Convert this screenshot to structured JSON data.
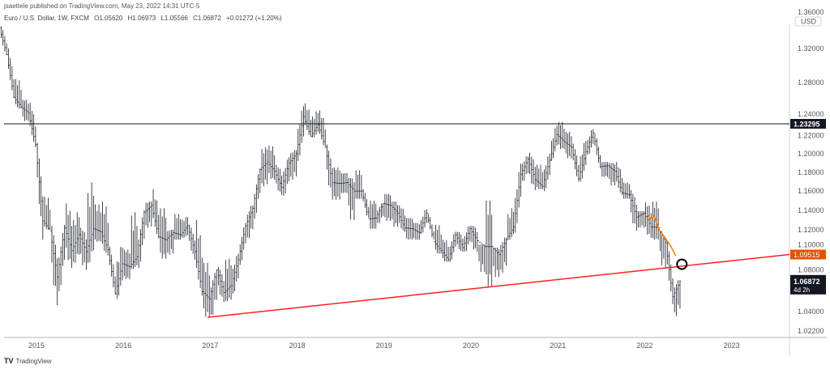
{
  "header": {
    "published": "jsaettele published on TradingView.com, May 23, 2022 14:31 UTC-5",
    "symbol": "Euro / U.S. Dollar, 1W, FXCM",
    "open": "O1.05620",
    "high": "H1.06973",
    "low": "L1.05566",
    "close": "C1.06872",
    "change": "+0.01272 (+1.20%)"
  },
  "footer": {
    "brand": "TradingView",
    "logo_icon": "tradingview-logo"
  },
  "chart_data": {
    "type": "ohlc",
    "symbol": "EURUSD",
    "interval": "1W",
    "currency": "USD",
    "yscale": "log",
    "ylim": [
      1.018,
      1.365
    ],
    "xlim": [
      "2014-08",
      "2023-10"
    ],
    "grid": false,
    "x_ticks": [
      "2015",
      "2016",
      "2017",
      "2018",
      "2019",
      "2020",
      "2021",
      "2022",
      "2023"
    ],
    "y_ticks": [
      "1.36000",
      "1.32000",
      "1.28000",
      "1.24000",
      "1.22000",
      "1.20000",
      "1.18000",
      "1.16000",
      "1.14000",
      "1.12000",
      "1.10000",
      "1.08000",
      "1.04000",
      "1.02200"
    ],
    "bar_color": "#131722",
    "bars_columns": [
      "month",
      "open",
      "high",
      "low",
      "close"
    ],
    "bars": [
      [
        "2014-08",
        1.345,
        1.347,
        1.312,
        1.313
      ],
      [
        "2014-09",
        1.313,
        1.32,
        1.262,
        1.263
      ],
      [
        "2014-10",
        1.263,
        1.284,
        1.25,
        1.252
      ],
      [
        "2014-11",
        1.252,
        1.26,
        1.236,
        1.245
      ],
      [
        "2014-12",
        1.245,
        1.257,
        1.207,
        1.21
      ],
      [
        "2015-01",
        1.21,
        1.212,
        1.11,
        1.129
      ],
      [
        "2015-02",
        1.129,
        1.154,
        1.12,
        1.119
      ],
      [
        "2015-03",
        1.119,
        1.124,
        1.046,
        1.073
      ],
      [
        "2015-04",
        1.073,
        1.125,
        1.057,
        1.122
      ],
      [
        "2015-05",
        1.122,
        1.147,
        1.082,
        1.099
      ],
      [
        "2015-06",
        1.099,
        1.138,
        1.087,
        1.115
      ],
      [
        "2015-07",
        1.115,
        1.122,
        1.08,
        1.098
      ],
      [
        "2015-08",
        1.098,
        1.171,
        1.086,
        1.121
      ],
      [
        "2015-09",
        1.121,
        1.146,
        1.108,
        1.118
      ],
      [
        "2015-10",
        1.118,
        1.149,
        1.094,
        1.1
      ],
      [
        "2015-11",
        1.1,
        1.103,
        1.056,
        1.057
      ],
      [
        "2015-12",
        1.057,
        1.106,
        1.052,
        1.086
      ],
      [
        "2016-01",
        1.086,
        1.1,
        1.071,
        1.083
      ],
      [
        "2016-02",
        1.083,
        1.138,
        1.081,
        1.093
      ],
      [
        "2016-03",
        1.093,
        1.14,
        1.081,
        1.138
      ],
      [
        "2016-04",
        1.138,
        1.149,
        1.122,
        1.145
      ],
      [
        "2016-05",
        1.145,
        1.162,
        1.111,
        1.113
      ],
      [
        "2016-06",
        1.113,
        1.142,
        1.091,
        1.11
      ],
      [
        "2016-07",
        1.11,
        1.12,
        1.095,
        1.117
      ],
      [
        "2016-08",
        1.117,
        1.136,
        1.11,
        1.115
      ],
      [
        "2016-09",
        1.115,
        1.133,
        1.112,
        1.124
      ],
      [
        "2016-10",
        1.124,
        1.125,
        1.09,
        1.098
      ],
      [
        "2016-11",
        1.098,
        1.13,
        1.055,
        1.059
      ],
      [
        "2016-12",
        1.059,
        1.087,
        1.035,
        1.052
      ],
      [
        "2017-01",
        1.052,
        1.08,
        1.034,
        1.08
      ],
      [
        "2017-02",
        1.08,
        1.083,
        1.049,
        1.058
      ],
      [
        "2017-03",
        1.058,
        1.091,
        1.05,
        1.065
      ],
      [
        "2017-04",
        1.065,
        1.096,
        1.057,
        1.09
      ],
      [
        "2017-05",
        1.09,
        1.127,
        1.085,
        1.124
      ],
      [
        "2017-06",
        1.124,
        1.145,
        1.111,
        1.142
      ],
      [
        "2017-07",
        1.142,
        1.184,
        1.131,
        1.183
      ],
      [
        "2017-08",
        1.183,
        1.207,
        1.165,
        1.191
      ],
      [
        "2017-09",
        1.191,
        1.209,
        1.172,
        1.181
      ],
      [
        "2017-10",
        1.181,
        1.188,
        1.156,
        1.164
      ],
      [
        "2017-11",
        1.164,
        1.196,
        1.155,
        1.19
      ],
      [
        "2017-12",
        1.19,
        1.204,
        1.172,
        1.2
      ],
      [
        "2018-01",
        1.2,
        1.254,
        1.192,
        1.241
      ],
      [
        "2018-02",
        1.241,
        1.256,
        1.219,
        1.219
      ],
      [
        "2018-03",
        1.219,
        1.247,
        1.218,
        1.232
      ],
      [
        "2018-04",
        1.232,
        1.248,
        1.207,
        1.207
      ],
      [
        "2018-05",
        1.207,
        1.21,
        1.151,
        1.169
      ],
      [
        "2018-06",
        1.169,
        1.185,
        1.151,
        1.168
      ],
      [
        "2018-07",
        1.168,
        1.179,
        1.158,
        1.169
      ],
      [
        "2018-08",
        1.169,
        1.174,
        1.13,
        1.16
      ],
      [
        "2018-09",
        1.16,
        1.182,
        1.152,
        1.16
      ],
      [
        "2018-10",
        1.16,
        1.162,
        1.132,
        1.131
      ],
      [
        "2018-11",
        1.131,
        1.15,
        1.121,
        1.132
      ],
      [
        "2018-12",
        1.132,
        1.147,
        1.127,
        1.147
      ],
      [
        "2019-01",
        1.147,
        1.157,
        1.129,
        1.145
      ],
      [
        "2019-02",
        1.145,
        1.149,
        1.123,
        1.137
      ],
      [
        "2019-03",
        1.137,
        1.145,
        1.118,
        1.122
      ],
      [
        "2019-04",
        1.122,
        1.132,
        1.11,
        1.121
      ],
      [
        "2019-05",
        1.121,
        1.127,
        1.11,
        1.117
      ],
      [
        "2019-06",
        1.117,
        1.141,
        1.116,
        1.137
      ],
      [
        "2019-07",
        1.137,
        1.136,
        1.11,
        1.108
      ],
      [
        "2019-08",
        1.108,
        1.125,
        1.096,
        1.099
      ],
      [
        "2019-09",
        1.099,
        1.11,
        1.088,
        1.09
      ],
      [
        "2019-10",
        1.09,
        1.118,
        1.088,
        1.115
      ],
      [
        "2019-11",
        1.115,
        1.118,
        1.098,
        1.102
      ],
      [
        "2019-12",
        1.102,
        1.124,
        1.098,
        1.121
      ],
      [
        "2020-01",
        1.121,
        1.124,
        1.098,
        1.109
      ],
      [
        "2020-02",
        1.109,
        1.105,
        1.078,
        1.103
      ],
      [
        "2020-03",
        1.103,
        1.15,
        1.064,
        1.103
      ],
      [
        "2020-04",
        1.103,
        1.102,
        1.073,
        1.095
      ],
      [
        "2020-05",
        1.095,
        1.112,
        1.077,
        1.11
      ],
      [
        "2020-06",
        1.11,
        1.142,
        1.11,
        1.123
      ],
      [
        "2020-07",
        1.123,
        1.19,
        1.117,
        1.178
      ],
      [
        "2020-08",
        1.178,
        1.197,
        1.171,
        1.194
      ],
      [
        "2020-09",
        1.194,
        1.201,
        1.161,
        1.172
      ],
      [
        "2020-10",
        1.172,
        1.188,
        1.162,
        1.165
      ],
      [
        "2020-11",
        1.165,
        1.2,
        1.16,
        1.193
      ],
      [
        "2020-12",
        1.193,
        1.231,
        1.192,
        1.221
      ],
      [
        "2021-01",
        1.221,
        1.235,
        1.205,
        1.213
      ],
      [
        "2021-02",
        1.213,
        1.224,
        1.195,
        1.207
      ],
      [
        "2021-03",
        1.207,
        1.211,
        1.17,
        1.173
      ],
      [
        "2021-04",
        1.173,
        1.215,
        1.17,
        1.202
      ],
      [
        "2021-05",
        1.202,
        1.227,
        1.199,
        1.223
      ],
      [
        "2021-06",
        1.223,
        1.222,
        1.184,
        1.186
      ],
      [
        "2021-07",
        1.186,
        1.191,
        1.175,
        1.187
      ],
      [
        "2021-08",
        1.187,
        1.19,
        1.166,
        1.181
      ],
      [
        "2021-09",
        1.181,
        1.191,
        1.156,
        1.158
      ],
      [
        "2021-10",
        1.158,
        1.169,
        1.152,
        1.156
      ],
      [
        "2021-11",
        1.156,
        1.161,
        1.119,
        1.133
      ],
      [
        "2021-12",
        1.133,
        1.139,
        1.122,
        1.137
      ],
      [
        "2022-01",
        1.137,
        1.148,
        1.112,
        1.123
      ],
      [
        "2022-02",
        1.123,
        1.149,
        1.11,
        1.122
      ],
      [
        "2022-03",
        1.122,
        1.118,
        1.081,
        1.107
      ],
      [
        "2022-04",
        1.107,
        1.108,
        1.047,
        1.054
      ],
      [
        "2022-05",
        1.054,
        1.07,
        1.0357,
        1.06872
      ]
    ],
    "horizontal_line": {
      "value": 1.23295,
      "label": "1.23295",
      "color": "#131722"
    },
    "trendline": {
      "from": [
        "2016-12-20",
        1.0345
      ],
      "to": [
        "2023-10-15",
        1.09515
      ],
      "label": "1.09515",
      "color": "#ff2020",
      "label_color": "#e65100"
    },
    "projection_path": {
      "color": "#f57c00",
      "points": [
        [
          "2022-01-10",
          1.136
        ],
        [
          "2022-01-25",
          1.131
        ],
        [
          "2022-02-10",
          1.134
        ],
        [
          "2022-03-01",
          1.12
        ],
        [
          "2022-03-25",
          1.112
        ],
        [
          "2022-04-20",
          1.103
        ],
        [
          "2022-05-10",
          1.094
        ]
      ]
    },
    "marker_circle": {
      "date": "2022-06-05",
      "value": 1.0855
    },
    "last_price": {
      "value": "1.06872",
      "countdown": "4d 2h"
    }
  }
}
